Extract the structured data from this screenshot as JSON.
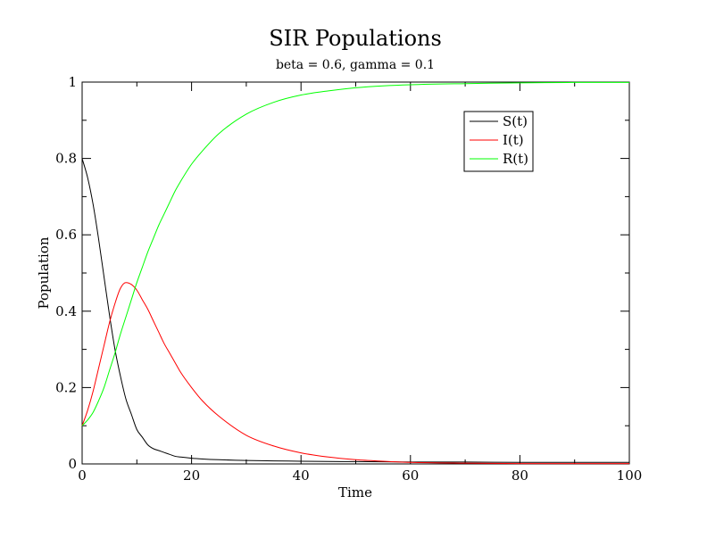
{
  "chart_data": {
    "type": "line",
    "title": "SIR Populations",
    "subtitle": "beta = 0.6, gamma = 0.1",
    "xlabel": "Time",
    "ylabel": "Population",
    "xlim": [
      0,
      100
    ],
    "ylim": [
      0,
      1
    ],
    "xticks": [
      "0",
      "20",
      "40",
      "60",
      "80",
      "100"
    ],
    "yticks": [
      "0",
      "0.2",
      "0.4",
      "0.6",
      "0.8",
      "1"
    ],
    "grid": false,
    "legend_position": "top-right",
    "series": [
      {
        "name": "S(t)",
        "color": "#000000",
        "x": [
          0,
          1,
          2,
          3,
          4,
          5,
          6,
          7,
          8,
          9,
          10,
          11,
          12,
          13,
          14,
          15,
          16,
          17,
          18,
          20,
          22,
          25,
          30,
          35,
          40,
          50,
          60,
          70,
          80,
          90,
          100
        ],
        "y": [
          0.8,
          0.75,
          0.68,
          0.59,
          0.49,
          0.39,
          0.3,
          0.23,
          0.17,
          0.13,
          0.09,
          0.07,
          0.05,
          0.04,
          0.035,
          0.03,
          0.025,
          0.02,
          0.018,
          0.015,
          0.013,
          0.011,
          0.009,
          0.008,
          0.007,
          0.006,
          0.005,
          0.005,
          0.004,
          0.004,
          0.004
        ]
      },
      {
        "name": "I(t)",
        "color": "#ff0000",
        "x": [
          0,
          1,
          2,
          3,
          4,
          5,
          6,
          7,
          8,
          9,
          10,
          11,
          12,
          13,
          14,
          15,
          16,
          17,
          18,
          20,
          22,
          25,
          30,
          35,
          40,
          45,
          50,
          55,
          60,
          70,
          80,
          90,
          100
        ],
        "y": [
          0.1,
          0.14,
          0.19,
          0.25,
          0.31,
          0.37,
          0.42,
          0.46,
          0.475,
          0.47,
          0.455,
          0.43,
          0.405,
          0.375,
          0.345,
          0.315,
          0.29,
          0.265,
          0.24,
          0.2,
          0.165,
          0.125,
          0.075,
          0.047,
          0.029,
          0.018,
          0.011,
          0.007,
          0.004,
          0.002,
          0.001,
          0.001,
          0.001
        ]
      },
      {
        "name": "R(t)",
        "color": "#00ff00",
        "x": [
          0,
          1,
          2,
          3,
          4,
          5,
          6,
          7,
          8,
          9,
          10,
          11,
          12,
          13,
          14,
          15,
          16,
          17,
          18,
          20,
          22,
          25,
          30,
          35,
          40,
          45,
          50,
          55,
          60,
          70,
          80,
          90,
          100
        ],
        "y": [
          0.1,
          0.115,
          0.135,
          0.165,
          0.2,
          0.245,
          0.29,
          0.34,
          0.385,
          0.43,
          0.475,
          0.515,
          0.555,
          0.59,
          0.625,
          0.655,
          0.685,
          0.715,
          0.74,
          0.785,
          0.82,
          0.865,
          0.916,
          0.947,
          0.966,
          0.977,
          0.985,
          0.99,
          0.993,
          0.996,
          0.998,
          0.999,
          0.999
        ]
      }
    ]
  }
}
